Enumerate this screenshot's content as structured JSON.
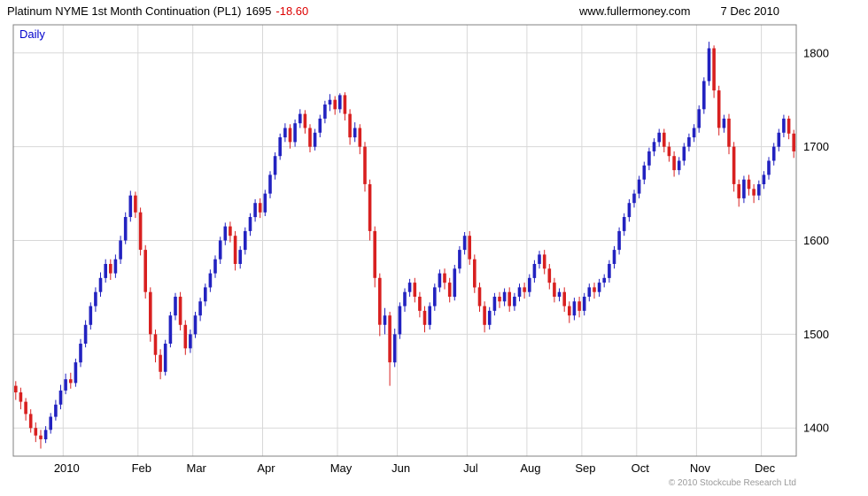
{
  "header": {
    "title": "Platinum NYME 1st Month Continuation (PL1)",
    "last_price": "1695",
    "change": "-18.60",
    "website": "www.fullermoney.com",
    "date": "7 Dec 2010"
  },
  "chart": {
    "timeframe_label": "Daily",
    "copyright": "© 2010 Stockcube Research Ltd"
  },
  "colors": {
    "up": "#2222c0",
    "down": "#d82020",
    "grid": "#d8d8d8",
    "frame": "#808080",
    "change_text": "#dd0000",
    "daily_label": "#0000cc",
    "copyright_text": "#999999"
  },
  "chart_data": {
    "type": "candlestick",
    "title": "Platinum NYME 1st Month Continuation (PL1)",
    "timeframe": "Daily",
    "last_close": 1695,
    "change": -18.6,
    "ylim": [
      1370,
      1830
    ],
    "y_ticks": [
      1400,
      1500,
      1600,
      1700,
      1800
    ],
    "grid": true,
    "x_ticks": [
      {
        "label": "2010",
        "bar": 10
      },
      {
        "label": "Feb",
        "bar": 25
      },
      {
        "label": "Mar",
        "bar": 36
      },
      {
        "label": "Apr",
        "bar": 50
      },
      {
        "label": "May",
        "bar": 65
      },
      {
        "label": "Jun",
        "bar": 77
      },
      {
        "label": "Jul",
        "bar": 91
      },
      {
        "label": "Aug",
        "bar": 103
      },
      {
        "label": "Sep",
        "bar": 114
      },
      {
        "label": "Oct",
        "bar": 125
      },
      {
        "label": "Nov",
        "bar": 137
      },
      {
        "label": "Dec",
        "bar": 150
      }
    ],
    "bars_format": [
      "open",
      "high",
      "low",
      "close"
    ],
    "bars": [
      [
        1445,
        1450,
        1430,
        1438
      ],
      [
        1438,
        1443,
        1420,
        1428
      ],
      [
        1428,
        1432,
        1408,
        1415
      ],
      [
        1415,
        1420,
        1395,
        1400
      ],
      [
        1400,
        1406,
        1385,
        1392
      ],
      [
        1392,
        1398,
        1378,
        1388
      ],
      [
        1388,
        1402,
        1384,
        1398
      ],
      [
        1398,
        1416,
        1394,
        1412
      ],
      [
        1412,
        1430,
        1408,
        1425
      ],
      [
        1425,
        1446,
        1420,
        1440
      ],
      [
        1440,
        1458,
        1436,
        1452
      ],
      [
        1452,
        1459,
        1442,
        1448
      ],
      [
        1448,
        1474,
        1444,
        1470
      ],
      [
        1470,
        1495,
        1465,
        1490
      ],
      [
        1490,
        1515,
        1486,
        1510
      ],
      [
        1510,
        1534,
        1505,
        1530
      ],
      [
        1530,
        1550,
        1524,
        1545
      ],
      [
        1545,
        1566,
        1540,
        1560
      ],
      [
        1560,
        1580,
        1555,
        1575
      ],
      [
        1575,
        1580,
        1558,
        1565
      ],
      [
        1565,
        1585,
        1560,
        1580
      ],
      [
        1580,
        1605,
        1575,
        1600
      ],
      [
        1600,
        1630,
        1596,
        1625
      ],
      [
        1625,
        1653,
        1620,
        1648
      ],
      [
        1648,
        1652,
        1624,
        1630
      ],
      [
        1630,
        1635,
        1584,
        1590
      ],
      [
        1590,
        1595,
        1538,
        1545
      ],
      [
        1545,
        1550,
        1492,
        1500
      ],
      [
        1500,
        1505,
        1470,
        1478
      ],
      [
        1478,
        1484,
        1452,
        1460
      ],
      [
        1460,
        1494,
        1456,
        1490
      ],
      [
        1490,
        1524,
        1486,
        1520
      ],
      [
        1520,
        1544,
        1515,
        1540
      ],
      [
        1540,
        1545,
        1504,
        1510
      ],
      [
        1510,
        1515,
        1478,
        1485
      ],
      [
        1485,
        1505,
        1480,
        1500
      ],
      [
        1500,
        1524,
        1496,
        1520
      ],
      [
        1520,
        1539,
        1514,
        1535
      ],
      [
        1535,
        1554,
        1530,
        1550
      ],
      [
        1550,
        1569,
        1545,
        1565
      ],
      [
        1565,
        1584,
        1560,
        1580
      ],
      [
        1580,
        1604,
        1575,
        1600
      ],
      [
        1600,
        1619,
        1595,
        1615
      ],
      [
        1615,
        1620,
        1598,
        1605
      ],
      [
        1605,
        1610,
        1568,
        1575
      ],
      [
        1575,
        1594,
        1570,
        1590
      ],
      [
        1590,
        1614,
        1585,
        1610
      ],
      [
        1610,
        1629,
        1605,
        1625
      ],
      [
        1625,
        1644,
        1620,
        1640
      ],
      [
        1640,
        1645,
        1624,
        1630
      ],
      [
        1630,
        1654,
        1626,
        1650
      ],
      [
        1650,
        1674,
        1645,
        1670
      ],
      [
        1670,
        1694,
        1665,
        1690
      ],
      [
        1690,
        1714,
        1686,
        1710
      ],
      [
        1710,
        1725,
        1705,
        1720
      ],
      [
        1720,
        1724,
        1698,
        1705
      ],
      [
        1705,
        1729,
        1700,
        1725
      ],
      [
        1725,
        1740,
        1720,
        1735
      ],
      [
        1735,
        1739,
        1714,
        1720
      ],
      [
        1720,
        1724,
        1694,
        1700
      ],
      [
        1700,
        1719,
        1696,
        1715
      ],
      [
        1715,
        1734,
        1710,
        1730
      ],
      [
        1730,
        1749,
        1725,
        1745
      ],
      [
        1745,
        1756,
        1738,
        1750
      ],
      [
        1750,
        1754,
        1734,
        1740
      ],
      [
        1740,
        1757,
        1736,
        1755
      ],
      [
        1755,
        1758,
        1728,
        1735
      ],
      [
        1735,
        1740,
        1702,
        1710
      ],
      [
        1710,
        1726,
        1705,
        1720
      ],
      [
        1720,
        1724,
        1692,
        1700
      ],
      [
        1700,
        1705,
        1652,
        1660
      ],
      [
        1660,
        1665,
        1600,
        1610
      ],
      [
        1610,
        1615,
        1550,
        1560
      ],
      [
        1560,
        1565,
        1498,
        1510
      ],
      [
        1510,
        1528,
        1500,
        1520
      ],
      [
        1520,
        1524,
        1445,
        1470
      ],
      [
        1470,
        1506,
        1465,
        1500
      ],
      [
        1500,
        1534,
        1495,
        1530
      ],
      [
        1530,
        1549,
        1524,
        1545
      ],
      [
        1545,
        1559,
        1540,
        1555
      ],
      [
        1555,
        1560,
        1534,
        1540
      ],
      [
        1540,
        1545,
        1518,
        1525
      ],
      [
        1525,
        1530,
        1502,
        1510
      ],
      [
        1510,
        1534,
        1505,
        1530
      ],
      [
        1530,
        1554,
        1525,
        1550
      ],
      [
        1550,
        1569,
        1545,
        1565
      ],
      [
        1565,
        1570,
        1548,
        1555
      ],
      [
        1555,
        1560,
        1534,
        1540
      ],
      [
        1540,
        1574,
        1536,
        1570
      ],
      [
        1570,
        1594,
        1565,
        1590
      ],
      [
        1590,
        1609,
        1585,
        1605
      ],
      [
        1605,
        1610,
        1574,
        1580
      ],
      [
        1580,
        1585,
        1544,
        1550
      ],
      [
        1550,
        1555,
        1524,
        1530
      ],
      [
        1530,
        1535,
        1502,
        1510
      ],
      [
        1510,
        1529,
        1505,
        1525
      ],
      [
        1525,
        1544,
        1520,
        1540
      ],
      [
        1540,
        1545,
        1528,
        1535
      ],
      [
        1535,
        1549,
        1530,
        1545
      ],
      [
        1545,
        1550,
        1524,
        1530
      ],
      [
        1530,
        1544,
        1525,
        1540
      ],
      [
        1540,
        1554,
        1535,
        1550
      ],
      [
        1550,
        1555,
        1538,
        1545
      ],
      [
        1545,
        1564,
        1540,
        1560
      ],
      [
        1560,
        1579,
        1555,
        1575
      ],
      [
        1575,
        1589,
        1570,
        1585
      ],
      [
        1585,
        1590,
        1564,
        1570
      ],
      [
        1570,
        1575,
        1548,
        1555
      ],
      [
        1555,
        1560,
        1534,
        1540
      ],
      [
        1540,
        1549,
        1535,
        1545
      ],
      [
        1545,
        1550,
        1524,
        1530
      ],
      [
        1530,
        1535,
        1512,
        1520
      ],
      [
        1520,
        1539,
        1515,
        1535
      ],
      [
        1535,
        1540,
        1518,
        1525
      ],
      [
        1525,
        1544,
        1520,
        1540
      ],
      [
        1540,
        1554,
        1535,
        1550
      ],
      [
        1550,
        1555,
        1538,
        1545
      ],
      [
        1545,
        1559,
        1540,
        1555
      ],
      [
        1555,
        1564,
        1550,
        1560
      ],
      [
        1560,
        1579,
        1555,
        1575
      ],
      [
        1575,
        1594,
        1570,
        1590
      ],
      [
        1590,
        1614,
        1585,
        1610
      ],
      [
        1610,
        1629,
        1605,
        1625
      ],
      [
        1625,
        1644,
        1620,
        1640
      ],
      [
        1640,
        1654,
        1635,
        1650
      ],
      [
        1650,
        1669,
        1645,
        1665
      ],
      [
        1665,
        1684,
        1660,
        1680
      ],
      [
        1680,
        1699,
        1675,
        1695
      ],
      [
        1695,
        1709,
        1690,
        1705
      ],
      [
        1705,
        1719,
        1700,
        1715
      ],
      [
        1715,
        1719,
        1694,
        1700
      ],
      [
        1700,
        1705,
        1684,
        1690
      ],
      [
        1690,
        1695,
        1668,
        1675
      ],
      [
        1675,
        1689,
        1670,
        1685
      ],
      [
        1685,
        1704,
        1680,
        1700
      ],
      [
        1700,
        1714,
        1695,
        1710
      ],
      [
        1710,
        1724,
        1705,
        1720
      ],
      [
        1720,
        1744,
        1715,
        1740
      ],
      [
        1740,
        1774,
        1735,
        1770
      ],
      [
        1770,
        1812,
        1765,
        1805
      ],
      [
        1805,
        1808,
        1752,
        1760
      ],
      [
        1760,
        1765,
        1712,
        1720
      ],
      [
        1720,
        1734,
        1715,
        1730
      ],
      [
        1730,
        1735,
        1692,
        1700
      ],
      [
        1700,
        1705,
        1652,
        1660
      ],
      [
        1660,
        1665,
        1636,
        1645
      ],
      [
        1645,
        1669,
        1640,
        1665
      ],
      [
        1665,
        1670,
        1648,
        1655
      ],
      [
        1655,
        1660,
        1640,
        1648
      ],
      [
        1648,
        1664,
        1643,
        1660
      ],
      [
        1660,
        1674,
        1655,
        1670
      ],
      [
        1670,
        1689,
        1665,
        1685
      ],
      [
        1685,
        1704,
        1680,
        1700
      ],
      [
        1700,
        1719,
        1695,
        1715
      ],
      [
        1715,
        1734,
        1710,
        1730
      ],
      [
        1730,
        1733,
        1708,
        1714
      ],
      [
        1714,
        1718,
        1688,
        1695
      ]
    ]
  }
}
